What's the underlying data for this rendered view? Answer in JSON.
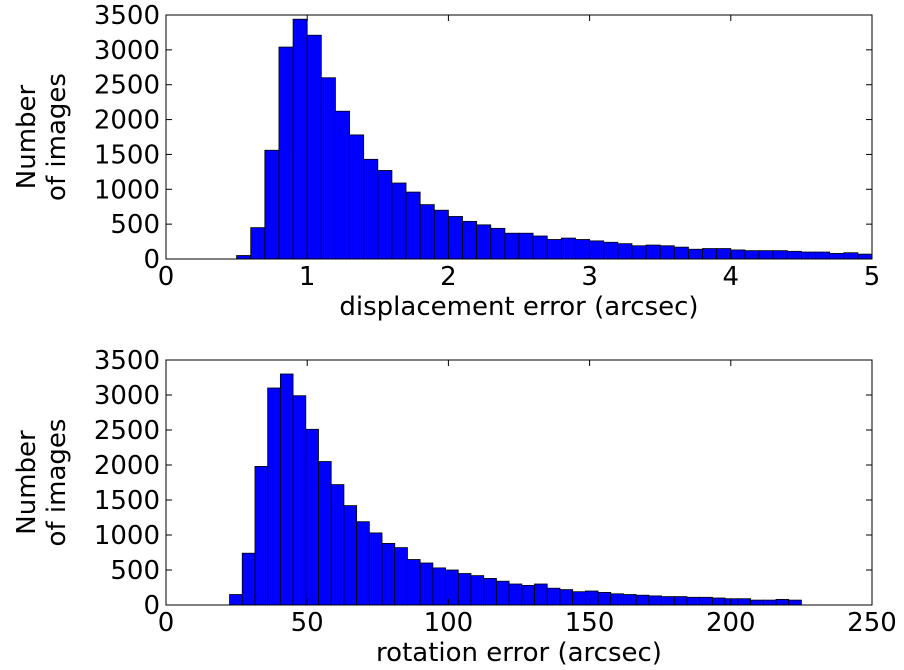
{
  "chart_data": [
    {
      "type": "histogram",
      "xlabel": "displacement error (arcsec)",
      "ylabel": [
        "Number",
        "of images"
      ],
      "color": "#0000ff",
      "bins": [
        0.5,
        0.6,
        0.7,
        0.8,
        0.9,
        1.0,
        1.1,
        1.2,
        1.3,
        1.4,
        1.5,
        1.6,
        1.7,
        1.8,
        1.9,
        2.0,
        2.1,
        2.2,
        2.3,
        2.4,
        2.5,
        2.6,
        2.7,
        2.8,
        2.9,
        3.0,
        3.1,
        3.2,
        3.3,
        3.4,
        3.5,
        3.6,
        3.7,
        3.8,
        3.9,
        4.0,
        4.1,
        4.2,
        4.3,
        4.4,
        4.5,
        4.6,
        4.7,
        4.8,
        4.9,
        5.0
      ],
      "values": [
        50,
        450,
        1560,
        3040,
        3440,
        3210,
        2600,
        2120,
        1780,
        1430,
        1270,
        1090,
        960,
        780,
        700,
        610,
        540,
        490,
        440,
        370,
        370,
        330,
        280,
        300,
        280,
        260,
        240,
        220,
        190,
        200,
        190,
        170,
        140,
        150,
        150,
        130,
        120,
        120,
        120,
        110,
        100,
        100,
        80,
        90,
        70
      ],
      "xlim": [
        0,
        5
      ],
      "xticks": [
        0,
        1,
        2,
        3,
        4,
        5
      ],
      "ylim": [
        0,
        3500
      ],
      "yticks": [
        0,
        500,
        1000,
        1500,
        2000,
        2500,
        3000,
        3500
      ]
    },
    {
      "type": "histogram",
      "xlabel": "rotation error (arcsec)",
      "ylabel": [
        "Number",
        "of images"
      ],
      "color": "#0000ff",
      "bins": [
        22.5,
        27,
        31.5,
        36,
        40.5,
        45,
        49.5,
        54,
        58.5,
        63,
        67.5,
        72,
        76.5,
        81,
        85.5,
        90,
        94.5,
        99,
        103.5,
        108,
        112.5,
        117,
        121.5,
        126,
        130.5,
        135,
        139.5,
        144,
        148.5,
        153,
        157.5,
        162,
        166.5,
        171,
        175.5,
        180,
        184.5,
        189,
        193.5,
        198,
        202.5,
        207,
        211.5,
        216,
        220.5,
        225
      ],
      "values": [
        150,
        740,
        1980,
        3100,
        3300,
        2990,
        2510,
        2050,
        1720,
        1420,
        1190,
        1030,
        880,
        820,
        650,
        600,
        530,
        500,
        450,
        420,
        380,
        340,
        300,
        280,
        300,
        240,
        220,
        190,
        200,
        180,
        160,
        150,
        140,
        130,
        120,
        120,
        110,
        110,
        100,
        90,
        90,
        70,
        70,
        80,
        70
      ],
      "xlim": [
        0,
        250
      ],
      "xticks": [
        0,
        50,
        100,
        150,
        200,
        250
      ],
      "ylim": [
        0,
        3500
      ],
      "yticks": [
        0,
        500,
        1000,
        1500,
        2000,
        2500,
        3000,
        3500
      ]
    }
  ]
}
